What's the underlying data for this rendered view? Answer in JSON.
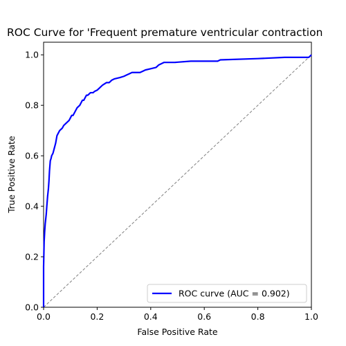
{
  "chart_data": {
    "type": "line",
    "title": "ROC Curve for 'Frequent premature ventricular contraction",
    "xlabel": "False Positive Rate",
    "ylabel": "True Positive Rate",
    "xlim": [
      0.0,
      1.0
    ],
    "ylim": [
      0.0,
      1.05
    ],
    "xticks": [
      "0.0",
      "0.2",
      "0.4",
      "0.6",
      "0.8",
      "1.0"
    ],
    "yticks": [
      "0.0",
      "0.2",
      "0.4",
      "0.6",
      "0.8",
      "1.0"
    ],
    "grid": false,
    "legend_position": "lower right",
    "series": [
      {
        "name": "ROC curve (AUC = 0.902)",
        "color": "#0000ff",
        "style": "solid",
        "x": [
          0.0,
          0.0,
          0.002,
          0.004,
          0.006,
          0.008,
          0.01,
          0.012,
          0.015,
          0.018,
          0.02,
          0.022,
          0.025,
          0.028,
          0.03,
          0.035,
          0.04,
          0.045,
          0.05,
          0.055,
          0.06,
          0.07,
          0.075,
          0.085,
          0.095,
          0.1,
          0.105,
          0.11,
          0.12,
          0.125,
          0.135,
          0.14,
          0.145,
          0.15,
          0.155,
          0.16,
          0.165,
          0.17,
          0.175,
          0.185,
          0.19,
          0.2,
          0.21,
          0.22,
          0.235,
          0.245,
          0.255,
          0.265,
          0.285,
          0.3,
          0.31,
          0.32,
          0.33,
          0.36,
          0.37,
          0.38,
          0.4,
          0.42,
          0.43,
          0.45,
          0.49,
          0.55,
          0.56,
          0.65,
          0.66,
          0.8,
          0.9,
          0.98,
          0.99,
          1.0
        ],
        "y": [
          0.0,
          0.16,
          0.26,
          0.3,
          0.33,
          0.35,
          0.37,
          0.4,
          0.44,
          0.47,
          0.5,
          0.54,
          0.58,
          0.59,
          0.6,
          0.61,
          0.63,
          0.65,
          0.68,
          0.69,
          0.7,
          0.71,
          0.72,
          0.73,
          0.74,
          0.75,
          0.76,
          0.76,
          0.78,
          0.79,
          0.8,
          0.81,
          0.82,
          0.82,
          0.83,
          0.84,
          0.84,
          0.845,
          0.85,
          0.85,
          0.855,
          0.86,
          0.87,
          0.88,
          0.89,
          0.89,
          0.9,
          0.905,
          0.91,
          0.915,
          0.92,
          0.925,
          0.93,
          0.93,
          0.935,
          0.94,
          0.945,
          0.95,
          0.96,
          0.97,
          0.97,
          0.975,
          0.975,
          0.975,
          0.98,
          0.985,
          0.99,
          0.99,
          0.99,
          1.0
        ]
      },
      {
        "color": "#808080",
        "style": "dashed",
        "x": [
          0.0,
          1.0
        ],
        "y": [
          0.0,
          1.0
        ]
      }
    ]
  }
}
